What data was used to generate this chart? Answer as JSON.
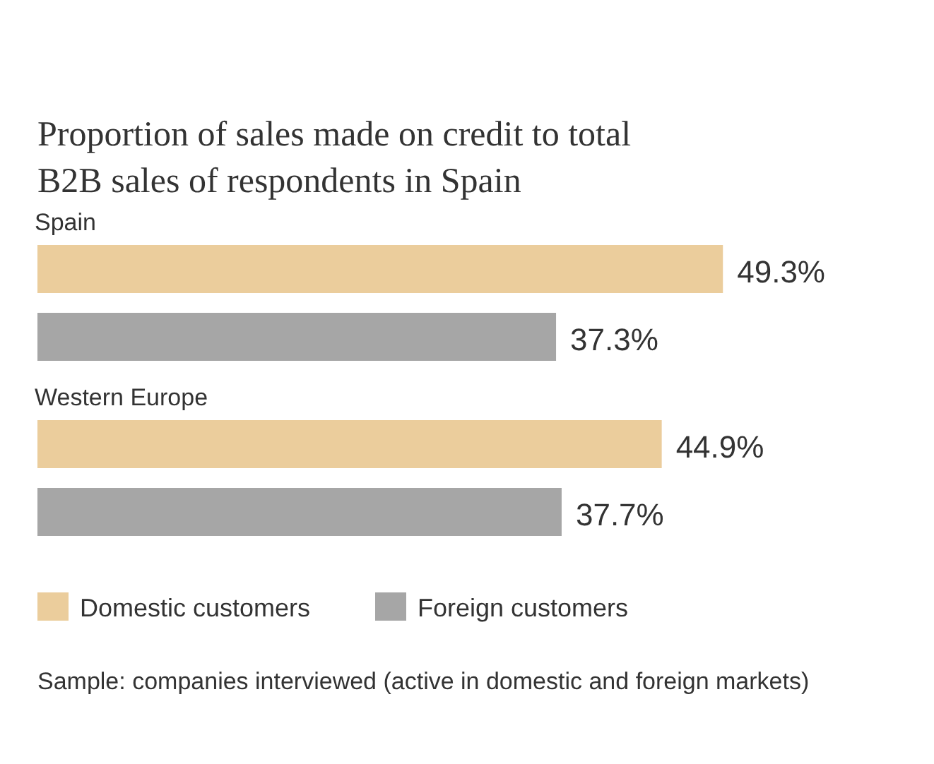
{
  "chart_data": {
    "type": "bar",
    "orientation": "horizontal",
    "title": "Proportion of sales made on credit to total\nB2B sales of respondents in Spain",
    "categories": [
      "Spain",
      "Western Europe"
    ],
    "series": [
      {
        "name": "Domestic customers",
        "color": "#ebcd9c",
        "values": [
          49.3,
          44.9
        ],
        "value_labels": [
          "49.3%",
          "44.9%"
        ]
      },
      {
        "name": "Foreign customers",
        "color": "#a6a6a6",
        "values": [
          37.3,
          37.7
        ],
        "value_labels": [
          "37.3%",
          "37.7%"
        ]
      }
    ],
    "legend": "bottom",
    "annotations": [
      "Sample: companies interviewed (active in domestic and foreign markets)"
    ]
  }
}
